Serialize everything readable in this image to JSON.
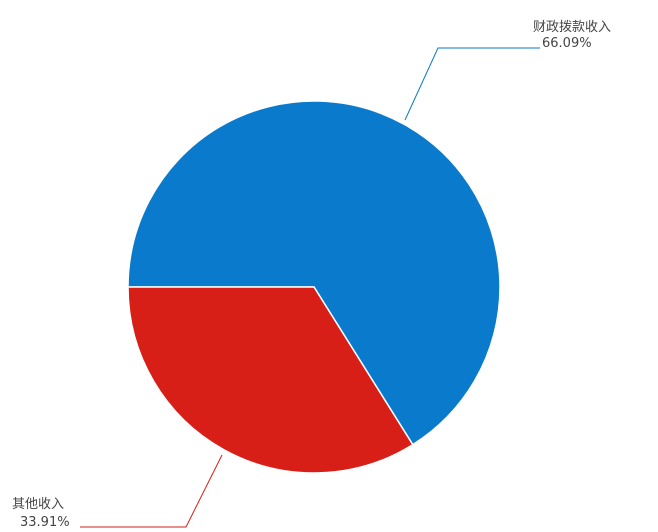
{
  "chart_data": {
    "type": "pie",
    "title": "",
    "slices": [
      {
        "label": "财政拨款收入",
        "value": 66.09,
        "display": "66.09%",
        "color": "#0a7acc"
      },
      {
        "label": "其他收入",
        "value": 33.91,
        "display": "33.91%",
        "color": "#d71f18"
      }
    ],
    "legend": "none",
    "labels_outside": true
  }
}
